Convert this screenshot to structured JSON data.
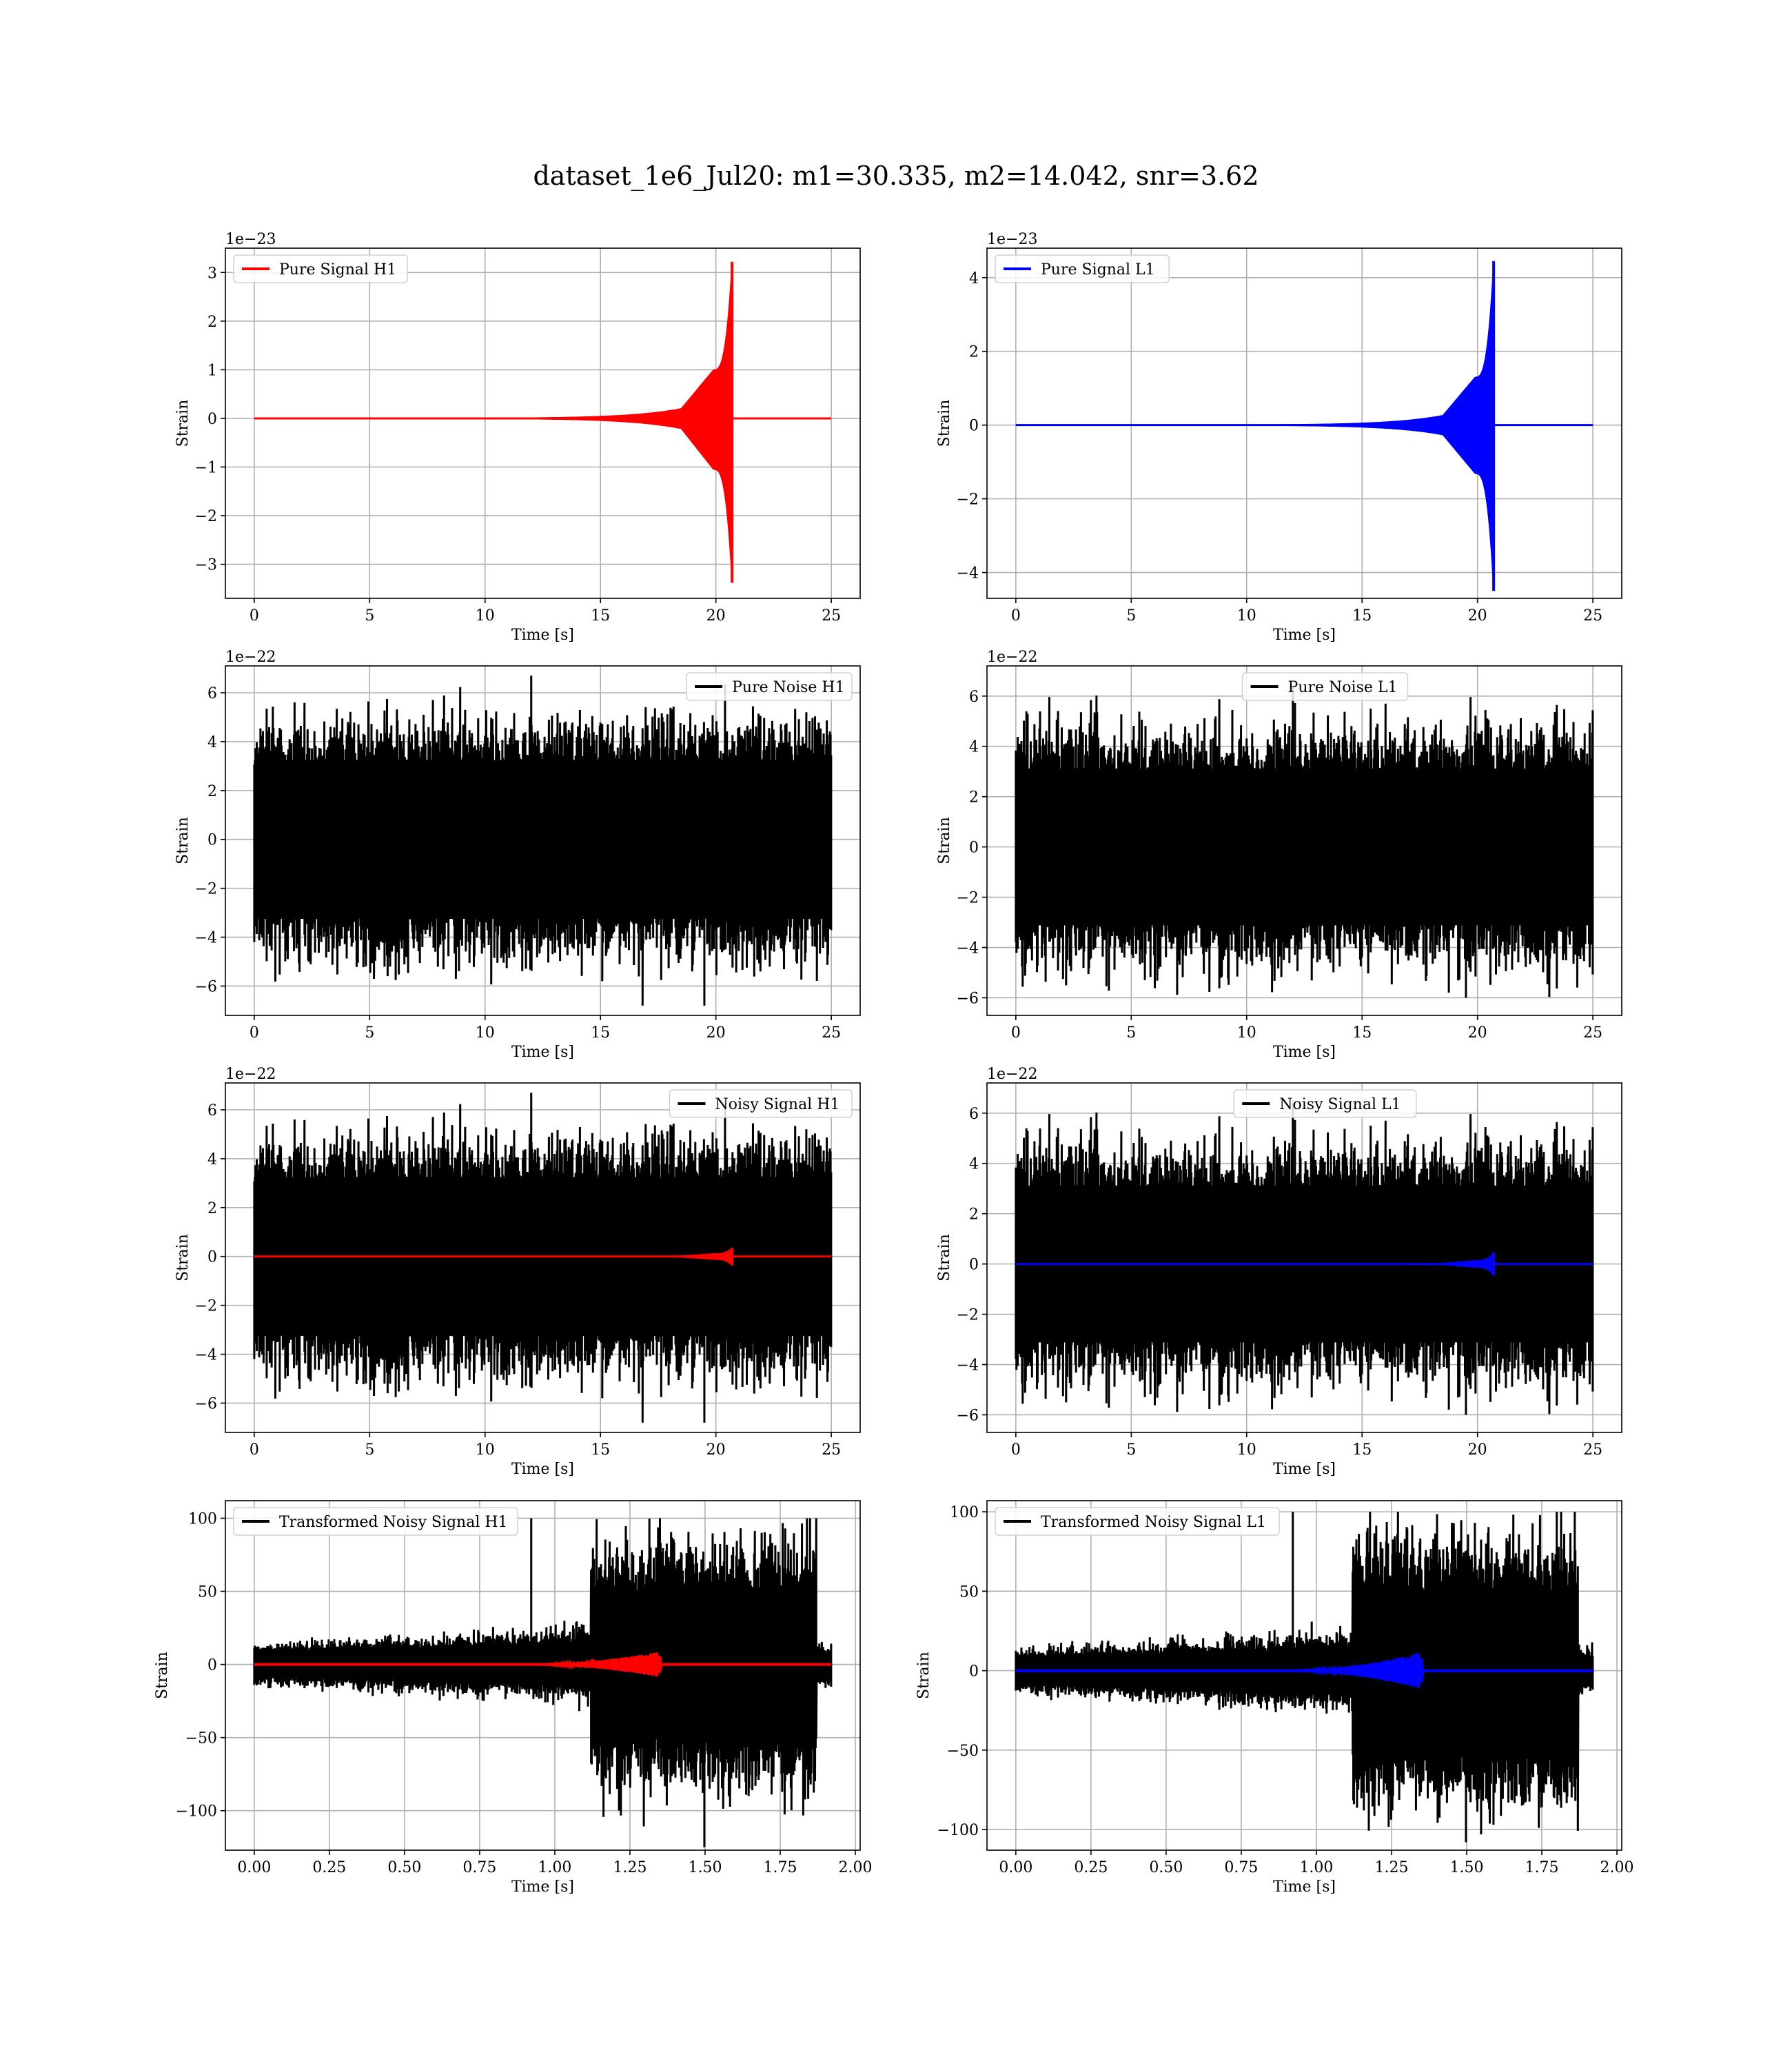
{
  "figure": {
    "suptitle": "dataset_1e6_Jul20: m1=30.335, m2=14.042, snr=3.62"
  },
  "chart_data": [
    {
      "type": "line",
      "legend": "Pure Signal H1",
      "legend_position": "top-left",
      "xlabel": "Time [s]",
      "ylabel": "Strain",
      "offset_text": "1e−23",
      "xlim": [
        -1.25,
        26.25
      ],
      "ylim": [
        -3.7,
        3.5
      ],
      "xticks": [
        0,
        5,
        10,
        15,
        20,
        25
      ],
      "xtick_labels": [
        "0",
        "5",
        "10",
        "15",
        "20",
        "25"
      ],
      "yticks": [
        -3,
        -2,
        -1,
        0,
        1,
        2,
        3
      ],
      "ytick_labels": [
        "−3",
        "−2",
        "−1",
        "0",
        "1",
        "2",
        "3"
      ],
      "grid": true,
      "series": [
        {
          "name": "Pure Signal H1",
          "color": "#ff0000",
          "kind": "chirp",
          "x_start": 0,
          "x_end": 25,
          "merger_time": 20.7,
          "peak_pos": 3.22,
          "peak_neg": -3.38,
          "plateau": 1.0,
          "width_factor": 1.0
        }
      ]
    },
    {
      "type": "line",
      "legend": "Pure Signal L1",
      "legend_position": "top-left",
      "xlabel": "Time [s]",
      "ylabel": "Strain",
      "offset_text": "1e−23",
      "xlim": [
        -1.25,
        26.25
      ],
      "ylim": [
        -4.7,
        4.8
      ],
      "xticks": [
        0,
        5,
        10,
        15,
        20,
        25
      ],
      "xtick_labels": [
        "0",
        "5",
        "10",
        "15",
        "20",
        "25"
      ],
      "yticks": [
        -4,
        -2,
        0,
        2,
        4
      ],
      "ytick_labels": [
        "−4",
        "−2",
        "0",
        "2",
        "4"
      ],
      "grid": true,
      "series": [
        {
          "name": "Pure Signal L1",
          "color": "#0000ff",
          "kind": "chirp",
          "x_start": 0,
          "x_end": 25,
          "merger_time": 20.7,
          "peak_pos": 4.45,
          "peak_neg": -4.5,
          "plateau": 1.3,
          "width_factor": 1.0
        }
      ]
    },
    {
      "type": "line",
      "legend": "Pure Noise H1",
      "legend_position": "top-right",
      "xlabel": "Time [s]",
      "ylabel": "Strain",
      "offset_text": "1e−22",
      "xlim": [
        -1.25,
        26.25
      ],
      "ylim": [
        -7.2,
        7.1
      ],
      "xticks": [
        0,
        5,
        10,
        15,
        20,
        25
      ],
      "xtick_labels": [
        "0",
        "5",
        "10",
        "15",
        "20",
        "25"
      ],
      "yticks": [
        -6,
        -4,
        -2,
        0,
        2,
        4,
        6
      ],
      "ytick_labels": [
        "−6",
        "−4",
        "−2",
        "0",
        "2",
        "4",
        "6"
      ],
      "grid": true,
      "series": [
        {
          "name": "Pure Noise H1",
          "color": "#000000",
          "kind": "noise",
          "x_start": 0,
          "x_end": 25,
          "sigma": 1.25,
          "max": 6.7,
          "min": -6.8,
          "seed": 11
        }
      ]
    },
    {
      "type": "line",
      "legend": "Pure Noise L1",
      "legend_position": "top-center",
      "xlabel": "Time [s]",
      "ylabel": "Strain",
      "offset_text": "1e−22",
      "xlim": [
        -1.25,
        26.25
      ],
      "ylim": [
        -6.7,
        7.2
      ],
      "xticks": [
        0,
        5,
        10,
        15,
        20,
        25
      ],
      "xtick_labels": [
        "0",
        "5",
        "10",
        "15",
        "20",
        "25"
      ],
      "yticks": [
        -6,
        -4,
        -2,
        0,
        2,
        4,
        6
      ],
      "ytick_labels": [
        "−6",
        "−4",
        "−2",
        "0",
        "2",
        "4",
        "6"
      ],
      "grid": true,
      "series": [
        {
          "name": "Pure Noise L1",
          "color": "#000000",
          "kind": "noise",
          "x_start": 0,
          "x_end": 25,
          "sigma": 1.2,
          "max": 6.4,
          "min": -6.0,
          "seed": 23
        }
      ]
    },
    {
      "type": "line",
      "legend": "Noisy Signal H1",
      "legend_position": "top-right",
      "xlabel": "Time [s]",
      "ylabel": "Strain",
      "offset_text": "1e−22",
      "xlim": [
        -1.25,
        26.25
      ],
      "ylim": [
        -7.2,
        7.1
      ],
      "xticks": [
        0,
        5,
        10,
        15,
        20,
        25
      ],
      "xtick_labels": [
        "0",
        "5",
        "10",
        "15",
        "20",
        "25"
      ],
      "yticks": [
        -6,
        -4,
        -2,
        0,
        2,
        4,
        6
      ],
      "ytick_labels": [
        "−6",
        "−4",
        "−2",
        "0",
        "2",
        "4",
        "6"
      ],
      "grid": true,
      "series": [
        {
          "name": "Noisy Signal H1",
          "color": "#000000",
          "kind": "noise",
          "x_start": 0,
          "x_end": 25,
          "sigma": 1.25,
          "max": 6.7,
          "min": -6.8,
          "seed": 11
        },
        {
          "color": "#ff0000",
          "kind": "chirp",
          "x_start": 0,
          "x_end": 25,
          "merger_time": 20.7,
          "peak_pos": 0.34,
          "peak_neg": -0.36,
          "plateau": 0.11,
          "width_factor": 1.0
        }
      ]
    },
    {
      "type": "line",
      "legend": "Noisy Signal L1",
      "legend_position": "top-center",
      "xlabel": "Time [s]",
      "ylabel": "Strain",
      "offset_text": "1e−22",
      "xlim": [
        -1.25,
        26.25
      ],
      "ylim": [
        -6.7,
        7.2
      ],
      "xticks": [
        0,
        5,
        10,
        15,
        20,
        25
      ],
      "xtick_labels": [
        "0",
        "5",
        "10",
        "15",
        "20",
        "25"
      ],
      "yticks": [
        -6,
        -4,
        -2,
        0,
        2,
        4,
        6
      ],
      "ytick_labels": [
        "−6",
        "−4",
        "−2",
        "0",
        "2",
        "4",
        "6"
      ],
      "grid": true,
      "series": [
        {
          "name": "Noisy Signal L1",
          "color": "#000000",
          "kind": "noise",
          "x_start": 0,
          "x_end": 25,
          "sigma": 1.2,
          "max": 6.4,
          "min": -6.0,
          "seed": 23
        },
        {
          "color": "#0000ff",
          "kind": "chirp",
          "x_start": 0,
          "x_end": 25,
          "merger_time": 20.7,
          "peak_pos": 0.45,
          "peak_neg": -0.45,
          "plateau": 0.13,
          "width_factor": 1.0
        }
      ]
    },
    {
      "type": "line",
      "legend": "Transformed Noisy Signal H1",
      "legend_position": "top-left",
      "xlabel": "Time [s]",
      "ylabel": "Strain",
      "offset_text": "",
      "xlim": [
        -0.096,
        2.016
      ],
      "ylim": [
        -127,
        112
      ],
      "xticks": [
        0,
        0.25,
        0.5,
        0.75,
        1.0,
        1.25,
        1.5,
        1.75,
        2.0
      ],
      "xtick_labels": [
        "0.00",
        "0.25",
        "0.50",
        "0.75",
        "1.00",
        "1.25",
        "1.50",
        "1.75",
        "2.00"
      ],
      "yticks": [
        -100,
        -50,
        0,
        50,
        100
      ],
      "ytick_labels": [
        "−100",
        "−50",
        "0",
        "50",
        "100"
      ],
      "grid": true,
      "series": [
        {
          "name": "Transformed Noisy Signal H1",
          "color": "#000000",
          "kind": "whitened",
          "x_start": 0,
          "x_end": 1.92,
          "jump_time": 1.12,
          "low_sigma": 4.5,
          "high_sigma": 22,
          "max": 100,
          "min": -125,
          "tail_time": 1.87,
          "seed": 37
        },
        {
          "color": "#ff0000",
          "kind": "chirp_short",
          "x_start": 0,
          "x_end": 1.92,
          "merger_time": 1.355,
          "peak": 9
        }
      ]
    },
    {
      "type": "line",
      "legend": "Transformed Noisy Signal L1",
      "legend_position": "top-left",
      "xlabel": "Time [s]",
      "ylabel": "Strain",
      "offset_text": "",
      "xlim": [
        -0.096,
        2.016
      ],
      "ylim": [
        -113,
        107
      ],
      "xticks": [
        0,
        0.25,
        0.5,
        0.75,
        1.0,
        1.25,
        1.5,
        1.75,
        2.0
      ],
      "xtick_labels": [
        "0.00",
        "0.25",
        "0.50",
        "0.75",
        "1.00",
        "1.25",
        "1.50",
        "1.75",
        "2.00"
      ],
      "yticks": [
        -100,
        -50,
        0,
        50,
        100
      ],
      "ytick_labels": [
        "−100",
        "−50",
        "0",
        "50",
        "100"
      ],
      "grid": true,
      "series": [
        {
          "name": "Transformed Noisy Signal L1",
          "color": "#000000",
          "kind": "whitened",
          "x_start": 0,
          "x_end": 1.92,
          "jump_time": 1.12,
          "low_sigma": 4.5,
          "high_sigma": 22,
          "max": 100,
          "min": -108,
          "tail_time": 1.87,
          "seed": 53
        },
        {
          "color": "#0000ff",
          "kind": "chirp_short",
          "x_start": 0,
          "x_end": 1.92,
          "merger_time": 1.355,
          "peak": 12
        }
      ]
    }
  ]
}
